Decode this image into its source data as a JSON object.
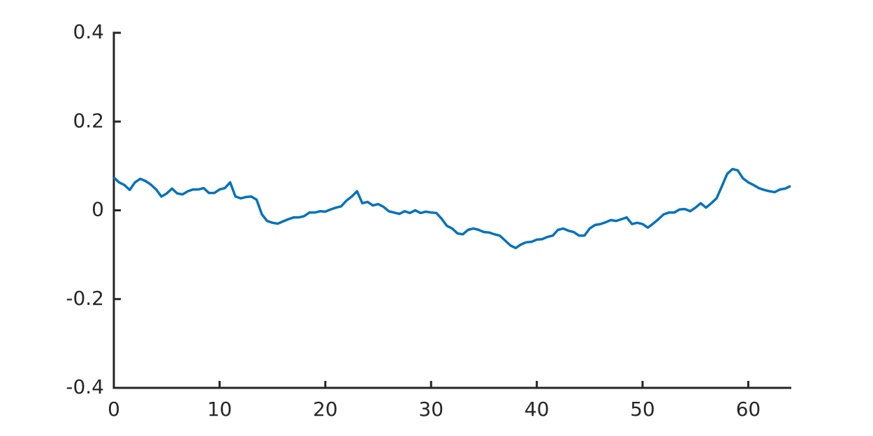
{
  "chart_data": {
    "type": "line",
    "x": [
      0,
      0.5,
      1,
      1.5,
      2,
      2.5,
      3,
      3.5,
      4,
      4.5,
      5,
      5.5,
      6,
      6.5,
      7,
      7.5,
      8,
      8.5,
      9,
      9.5,
      10,
      10.5,
      11,
      11.5,
      12,
      12.5,
      13,
      13.5,
      14,
      14.5,
      15,
      15.5,
      16,
      16.5,
      17,
      17.5,
      18,
      18.5,
      19,
      19.5,
      20,
      20.5,
      21,
      21.5,
      22,
      22.5,
      23,
      23.5,
      24,
      24.5,
      25,
      25.5,
      26,
      26.5,
      27,
      27.5,
      28,
      28.5,
      29,
      29.5,
      30,
      30.5,
      31,
      31.5,
      32,
      32.5,
      33,
      33.5,
      34,
      34.5,
      35,
      35.5,
      36,
      36.5,
      37,
      37.5,
      38,
      38.5,
      39,
      39.5,
      40,
      40.5,
      41,
      41.5,
      42,
      42.5,
      43,
      43.5,
      44,
      44.5,
      45,
      45.5,
      46,
      46.5,
      47,
      47.5,
      48,
      48.5,
      49,
      49.5,
      50,
      50.5,
      51,
      51.5,
      52,
      52.5,
      53,
      53.5,
      54,
      54.5,
      55,
      55.5,
      56,
      56.5,
      57,
      57.5,
      58,
      58.5,
      59,
      59.5,
      60,
      60.5,
      61,
      61.5,
      62,
      62.5,
      63,
      63.5,
      64
    ],
    "series": [
      {
        "color": "#0072bd",
        "values": [
          0.074,
          0.063,
          0.057,
          0.046,
          0.063,
          0.071,
          0.066,
          0.058,
          0.047,
          0.031,
          0.038,
          0.049,
          0.038,
          0.036,
          0.043,
          0.047,
          0.047,
          0.05,
          0.039,
          0.039,
          0.047,
          0.05,
          0.063,
          0.031,
          0.027,
          0.03,
          0.031,
          0.024,
          -0.009,
          -0.024,
          -0.028,
          -0.03,
          -0.025,
          -0.02,
          -0.016,
          -0.016,
          -0.013,
          -0.005,
          -0.005,
          -0.002,
          -0.003,
          0.002,
          0.006,
          0.009,
          0.022,
          0.031,
          0.043,
          0.016,
          0.019,
          0.011,
          0.014,
          0.008,
          -0.002,
          -0.005,
          -0.008,
          -0.002,
          -0.006,
          0,
          -0.006,
          -0.003,
          -0.005,
          -0.006,
          -0.019,
          -0.035,
          -0.041,
          -0.052,
          -0.054,
          -0.044,
          -0.041,
          -0.044,
          -0.049,
          -0.05,
          -0.054,
          -0.057,
          -0.068,
          -0.079,
          -0.085,
          -0.077,
          -0.072,
          -0.071,
          -0.066,
          -0.065,
          -0.06,
          -0.057,
          -0.044,
          -0.041,
          -0.046,
          -0.049,
          -0.057,
          -0.057,
          -0.041,
          -0.033,
          -0.031,
          -0.027,
          -0.022,
          -0.024,
          -0.02,
          -0.016,
          -0.031,
          -0.028,
          -0.031,
          -0.039,
          -0.03,
          -0.02,
          -0.009,
          -0.005,
          -0.005,
          0.002,
          0.003,
          -0.002,
          0.006,
          0.016,
          0.006,
          0.016,
          0.027,
          0.054,
          0.082,
          0.093,
          0.09,
          0.072,
          0.063,
          0.057,
          0.05,
          0.046,
          0.043,
          0.041,
          0.047,
          0.049,
          0.055
        ]
      }
    ],
    "xlim": [
      0,
      64
    ],
    "xticks": [
      0,
      10,
      20,
      30,
      40,
      50,
      60
    ],
    "ylim": [
      -0.4,
      0.4
    ],
    "yticks": [
      -0.4,
      -0.2,
      0,
      0.2,
      0.4
    ]
  }
}
